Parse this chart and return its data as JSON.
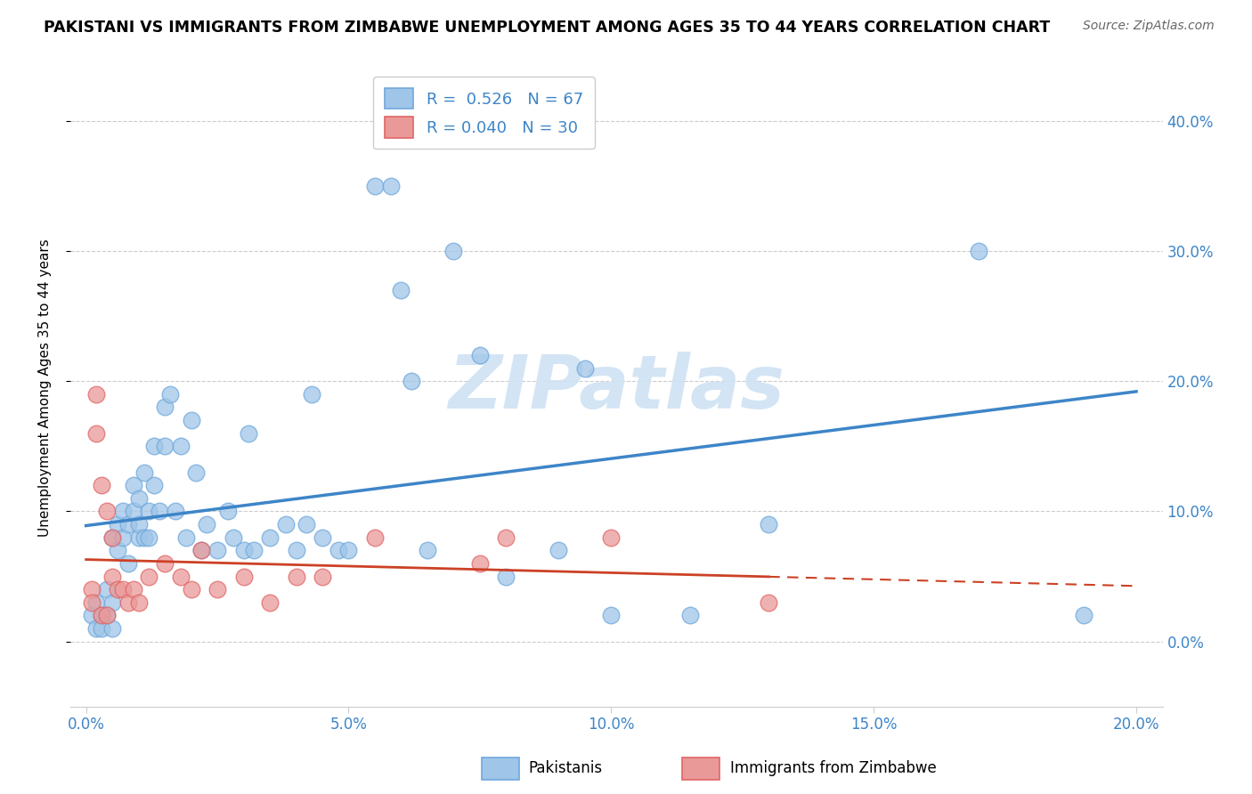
{
  "title": "PAKISTANI VS IMMIGRANTS FROM ZIMBABWE UNEMPLOYMENT AMONG AGES 35 TO 44 YEARS CORRELATION CHART",
  "source": "Source: ZipAtlas.com",
  "ylabel_label": "Unemployment Among Ages 35 to 44 years",
  "legend_pakistanis": "Pakistanis",
  "legend_zimbabwe": "Immigrants from Zimbabwe",
  "R_pakistani": 0.526,
  "N_pakistani": 67,
  "R_zimbabwe": 0.04,
  "N_zimbabwe": 30,
  "blue_scatter_color": "#9fc5e8",
  "blue_edge_color": "#6fa8dc",
  "pink_scatter_color": "#ea9999",
  "pink_edge_color": "#e06666",
  "blue_line_color": "#3d85c8",
  "pink_line_color": "#cc4125",
  "watermark_color": "#cfe2f3",
  "pakistani_x": [
    0.1,
    0.2,
    0.2,
    0.3,
    0.3,
    0.4,
    0.4,
    0.5,
    0.5,
    0.5,
    0.6,
    0.6,
    0.7,
    0.7,
    0.8,
    0.8,
    0.9,
    0.9,
    1.0,
    1.0,
    1.0,
    1.1,
    1.1,
    1.2,
    1.2,
    1.3,
    1.3,
    1.4,
    1.5,
    1.5,
    1.6,
    1.7,
    1.8,
    1.9,
    2.0,
    2.1,
    2.2,
    2.3,
    2.5,
    2.7,
    2.8,
    3.0,
    3.2,
    3.5,
    3.8,
    4.0,
    4.2,
    4.5,
    4.8,
    5.0,
    5.5,
    5.8,
    6.0,
    6.5,
    7.0,
    7.5,
    8.0,
    9.0,
    10.0,
    11.5,
    13.0,
    17.0,
    19.0,
    9.5,
    6.2,
    4.3,
    3.1
  ],
  "pakistani_y": [
    2.0,
    1.0,
    3.0,
    2.0,
    1.0,
    4.0,
    2.0,
    3.0,
    1.0,
    8.0,
    9.0,
    7.0,
    10.0,
    8.0,
    9.0,
    6.0,
    10.0,
    12.0,
    8.0,
    9.0,
    11.0,
    8.0,
    13.0,
    10.0,
    8.0,
    12.0,
    15.0,
    10.0,
    18.0,
    15.0,
    19.0,
    10.0,
    15.0,
    8.0,
    17.0,
    13.0,
    7.0,
    9.0,
    7.0,
    10.0,
    8.0,
    7.0,
    7.0,
    8.0,
    9.0,
    7.0,
    9.0,
    8.0,
    7.0,
    7.0,
    35.0,
    35.0,
    27.0,
    7.0,
    30.0,
    22.0,
    5.0,
    7.0,
    2.0,
    2.0,
    9.0,
    30.0,
    2.0,
    21.0,
    20.0,
    19.0,
    16.0
  ],
  "zimbabwe_x": [
    0.1,
    0.1,
    0.2,
    0.2,
    0.3,
    0.3,
    0.4,
    0.4,
    0.5,
    0.5,
    0.6,
    0.7,
    0.8,
    0.9,
    1.0,
    1.2,
    1.5,
    1.8,
    2.0,
    2.2,
    2.5,
    3.0,
    3.5,
    4.0,
    4.5,
    5.5,
    8.0,
    10.0,
    13.0,
    7.5
  ],
  "zimbabwe_y": [
    4.0,
    3.0,
    19.0,
    16.0,
    12.0,
    2.0,
    10.0,
    2.0,
    8.0,
    5.0,
    4.0,
    4.0,
    3.0,
    4.0,
    3.0,
    5.0,
    6.0,
    5.0,
    4.0,
    7.0,
    4.0,
    5.0,
    3.0,
    5.0,
    5.0,
    8.0,
    8.0,
    8.0,
    3.0,
    6.0
  ]
}
